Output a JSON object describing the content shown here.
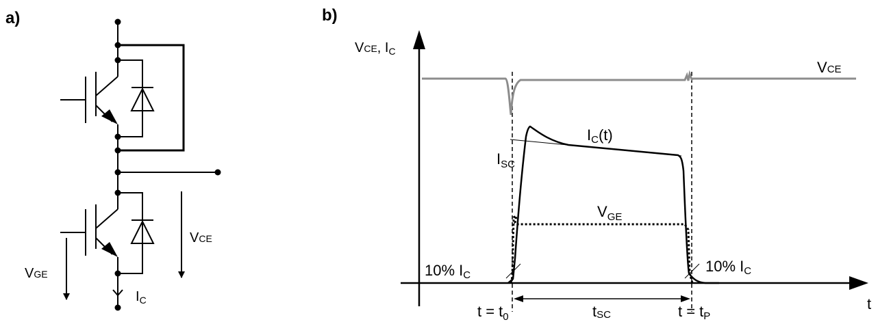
{
  "panel_a": {
    "label": "a)",
    "v_ge": {
      "main": "V",
      "sub": "GE"
    },
    "v_ce": {
      "main": "V",
      "sub": "CE"
    },
    "i_c": {
      "main": "I",
      "sub": "C"
    }
  },
  "panel_b": {
    "label": "b)",
    "y_axis_label": {
      "p1": "V",
      "p1sub": "CE",
      "p2": ", I",
      "p2sub": "C"
    },
    "x_axis_label": "t",
    "vce_label": {
      "main": "V",
      "sub": "CE"
    },
    "ic_label": {
      "main": "I",
      "sub": "C",
      "suffix": "(t)"
    },
    "isc_label": {
      "main": "I",
      "sub": "SC"
    },
    "vge_label": {
      "main": "V",
      "sub": "GE"
    },
    "ten_left": {
      "main": "10% I",
      "sub": "C"
    },
    "ten_right": {
      "main": "10% I",
      "sub": "C"
    },
    "t0_label": {
      "main": "t = t",
      "sub": "0"
    },
    "tsc_label": {
      "main": "t",
      "sub": "SC"
    },
    "tp_label": {
      "main": "t = t",
      "sub": "P"
    }
  },
  "colors": {
    "ink": "#000000",
    "vce_trace": "#8c8c8c"
  }
}
